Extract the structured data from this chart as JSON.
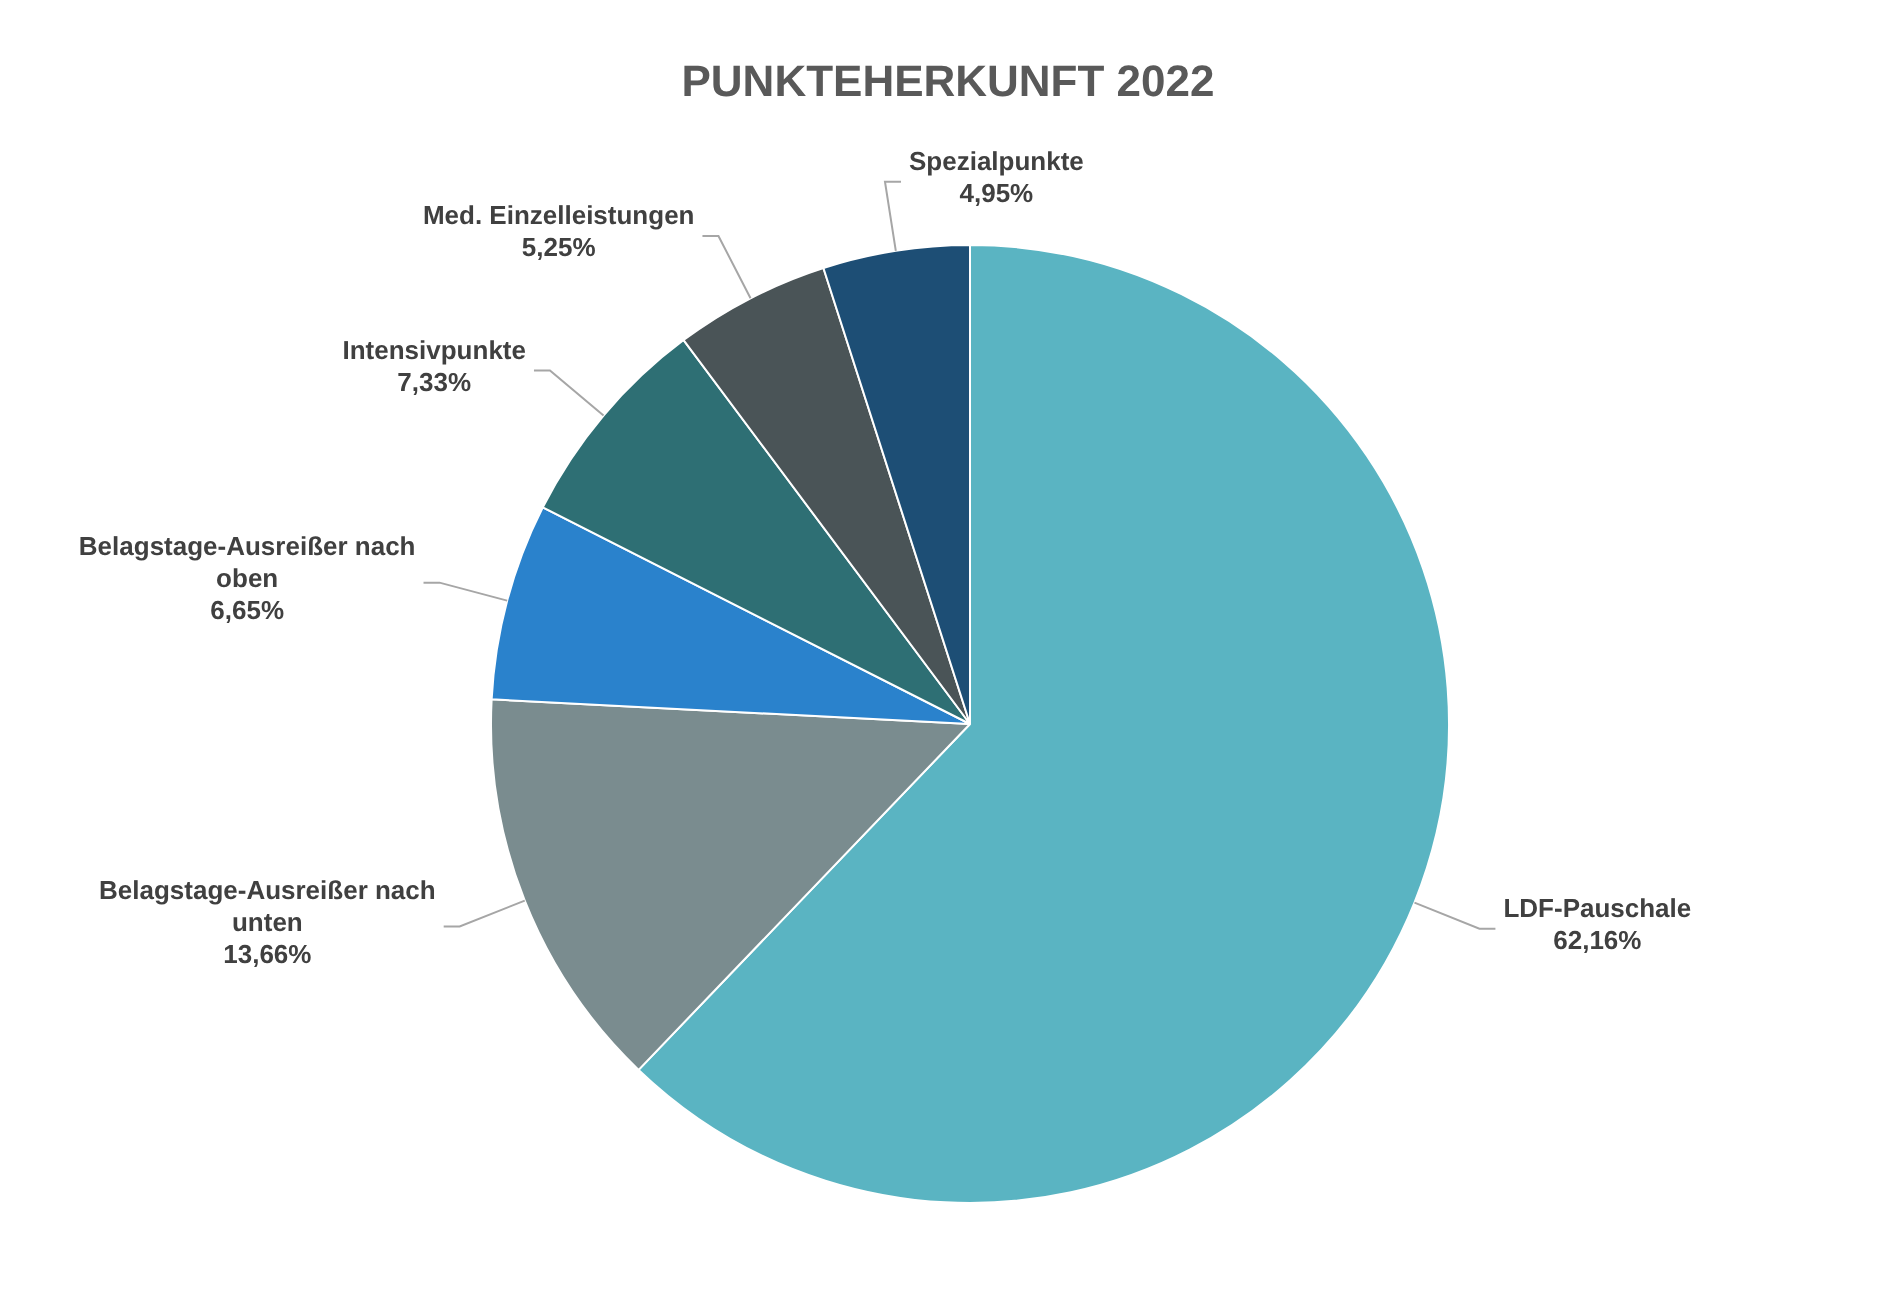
{
  "chart_data": {
    "type": "pie",
    "title": "PUNKTEHERKUNFT 2022",
    "categories": [
      "LDF-Pauschale",
      "Belagstage-Ausreißer nach unten",
      "Belagstage-Ausreißer nach oben",
      "Intensivpunkte",
      "Med. Einzelleistungen",
      "Spezialpunkte"
    ],
    "values": [
      62.16,
      13.66,
      6.65,
      7.33,
      5.25,
      4.95
    ],
    "value_labels": [
      "62,16%",
      "13,66%",
      "6,65%",
      "7,33%",
      "5,25%",
      "4,95%"
    ],
    "colors": [
      "#5ab4c2",
      "#7a8c8f",
      "#2a82cc",
      "#2e6f74",
      "#4a5457",
      "#1d4e75"
    ],
    "legend": false
  }
}
